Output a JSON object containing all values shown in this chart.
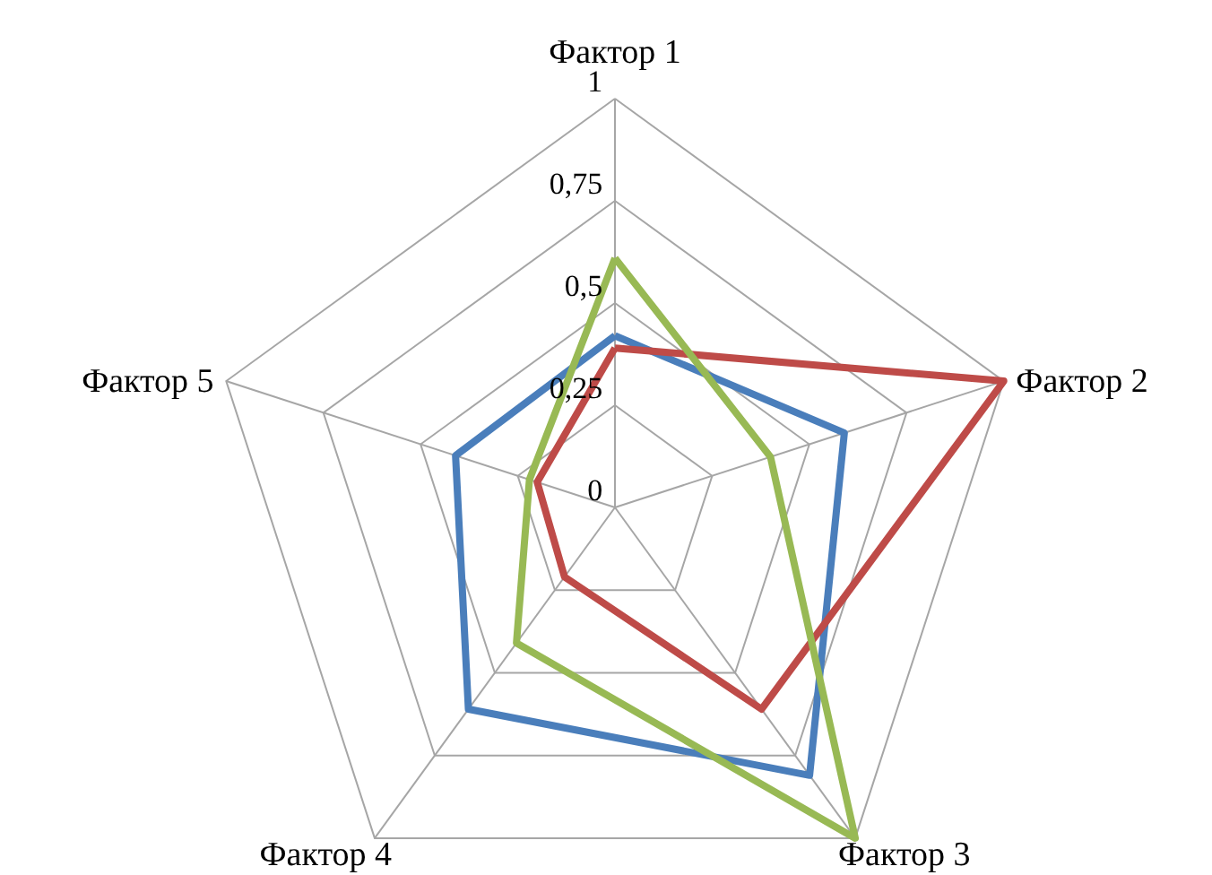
{
  "chart_data": {
    "type": "radar",
    "categories": [
      "Фактор 1",
      "Фактор 2",
      "Фактор 3",
      "Фактор 4",
      "Фактор 5"
    ],
    "series": [
      {
        "color": "#4a7ebb",
        "values": [
          0.42,
          0.59,
          0.81,
          0.61,
          0.41
        ]
      },
      {
        "color": "#be4b48",
        "values": [
          0.39,
          1.0,
          0.61,
          0.21,
          0.2
        ]
      },
      {
        "color": "#98b954",
        "values": [
          0.61,
          0.4,
          1.0,
          0.41,
          0.22
        ]
      }
    ],
    "ylim": [
      0,
      1
    ],
    "yticks": [
      0,
      {
        "value": 0.25,
        "label": "0,25"
      },
      {
        "value": 0.5,
        "label": "0,5"
      },
      {
        "value": 0.75,
        "label": "0,75"
      },
      1
    ],
    "grid": true
  }
}
